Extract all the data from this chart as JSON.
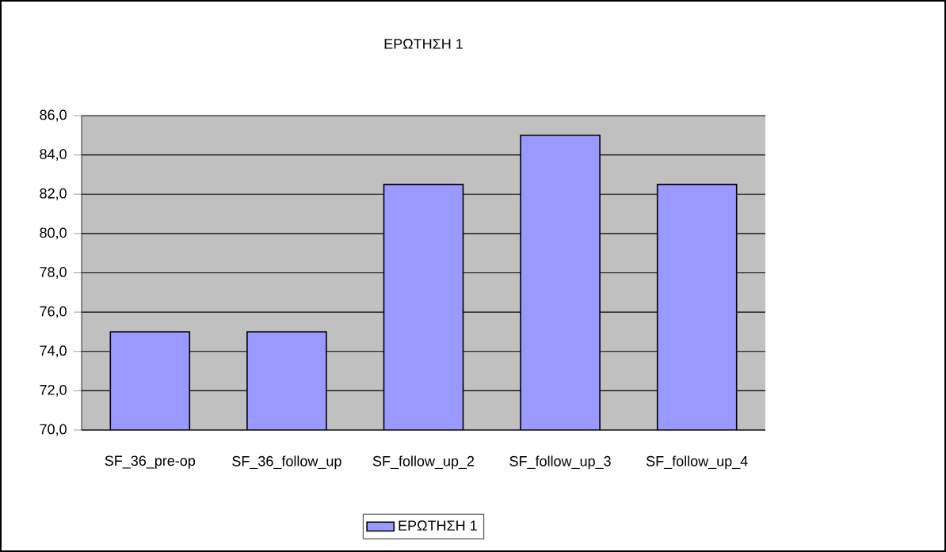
{
  "chart_data": {
    "type": "bar",
    "title": "ΕΡΩΤΗΣΗ 1",
    "categories": [
      "SF_36_pre-op",
      "SF_36_follow_up",
      "SF_follow_up_2",
      "SF_follow_up_3",
      "SF_follow_up_4"
    ],
    "series": [
      {
        "name": "ΕΡΩΤΗΣΗ 1",
        "color": "#9999ff",
        "values": [
          75.0,
          75.0,
          82.5,
          85.0,
          82.5
        ]
      }
    ],
    "ylim": [
      70,
      86
    ],
    "yticks": [
      {
        "value": 70,
        "label": "70,0"
      },
      {
        "value": 72,
        "label": "72,0"
      },
      {
        "value": 74,
        "label": "74,0"
      },
      {
        "value": 76,
        "label": "76,0"
      },
      {
        "value": 78,
        "label": "78,0"
      },
      {
        "value": 80,
        "label": "80,0"
      },
      {
        "value": 82,
        "label": "82,0"
      },
      {
        "value": 84,
        "label": "84,0"
      },
      {
        "value": 86,
        "label": "86,0"
      }
    ],
    "grid": "y",
    "legend": "bottom"
  }
}
